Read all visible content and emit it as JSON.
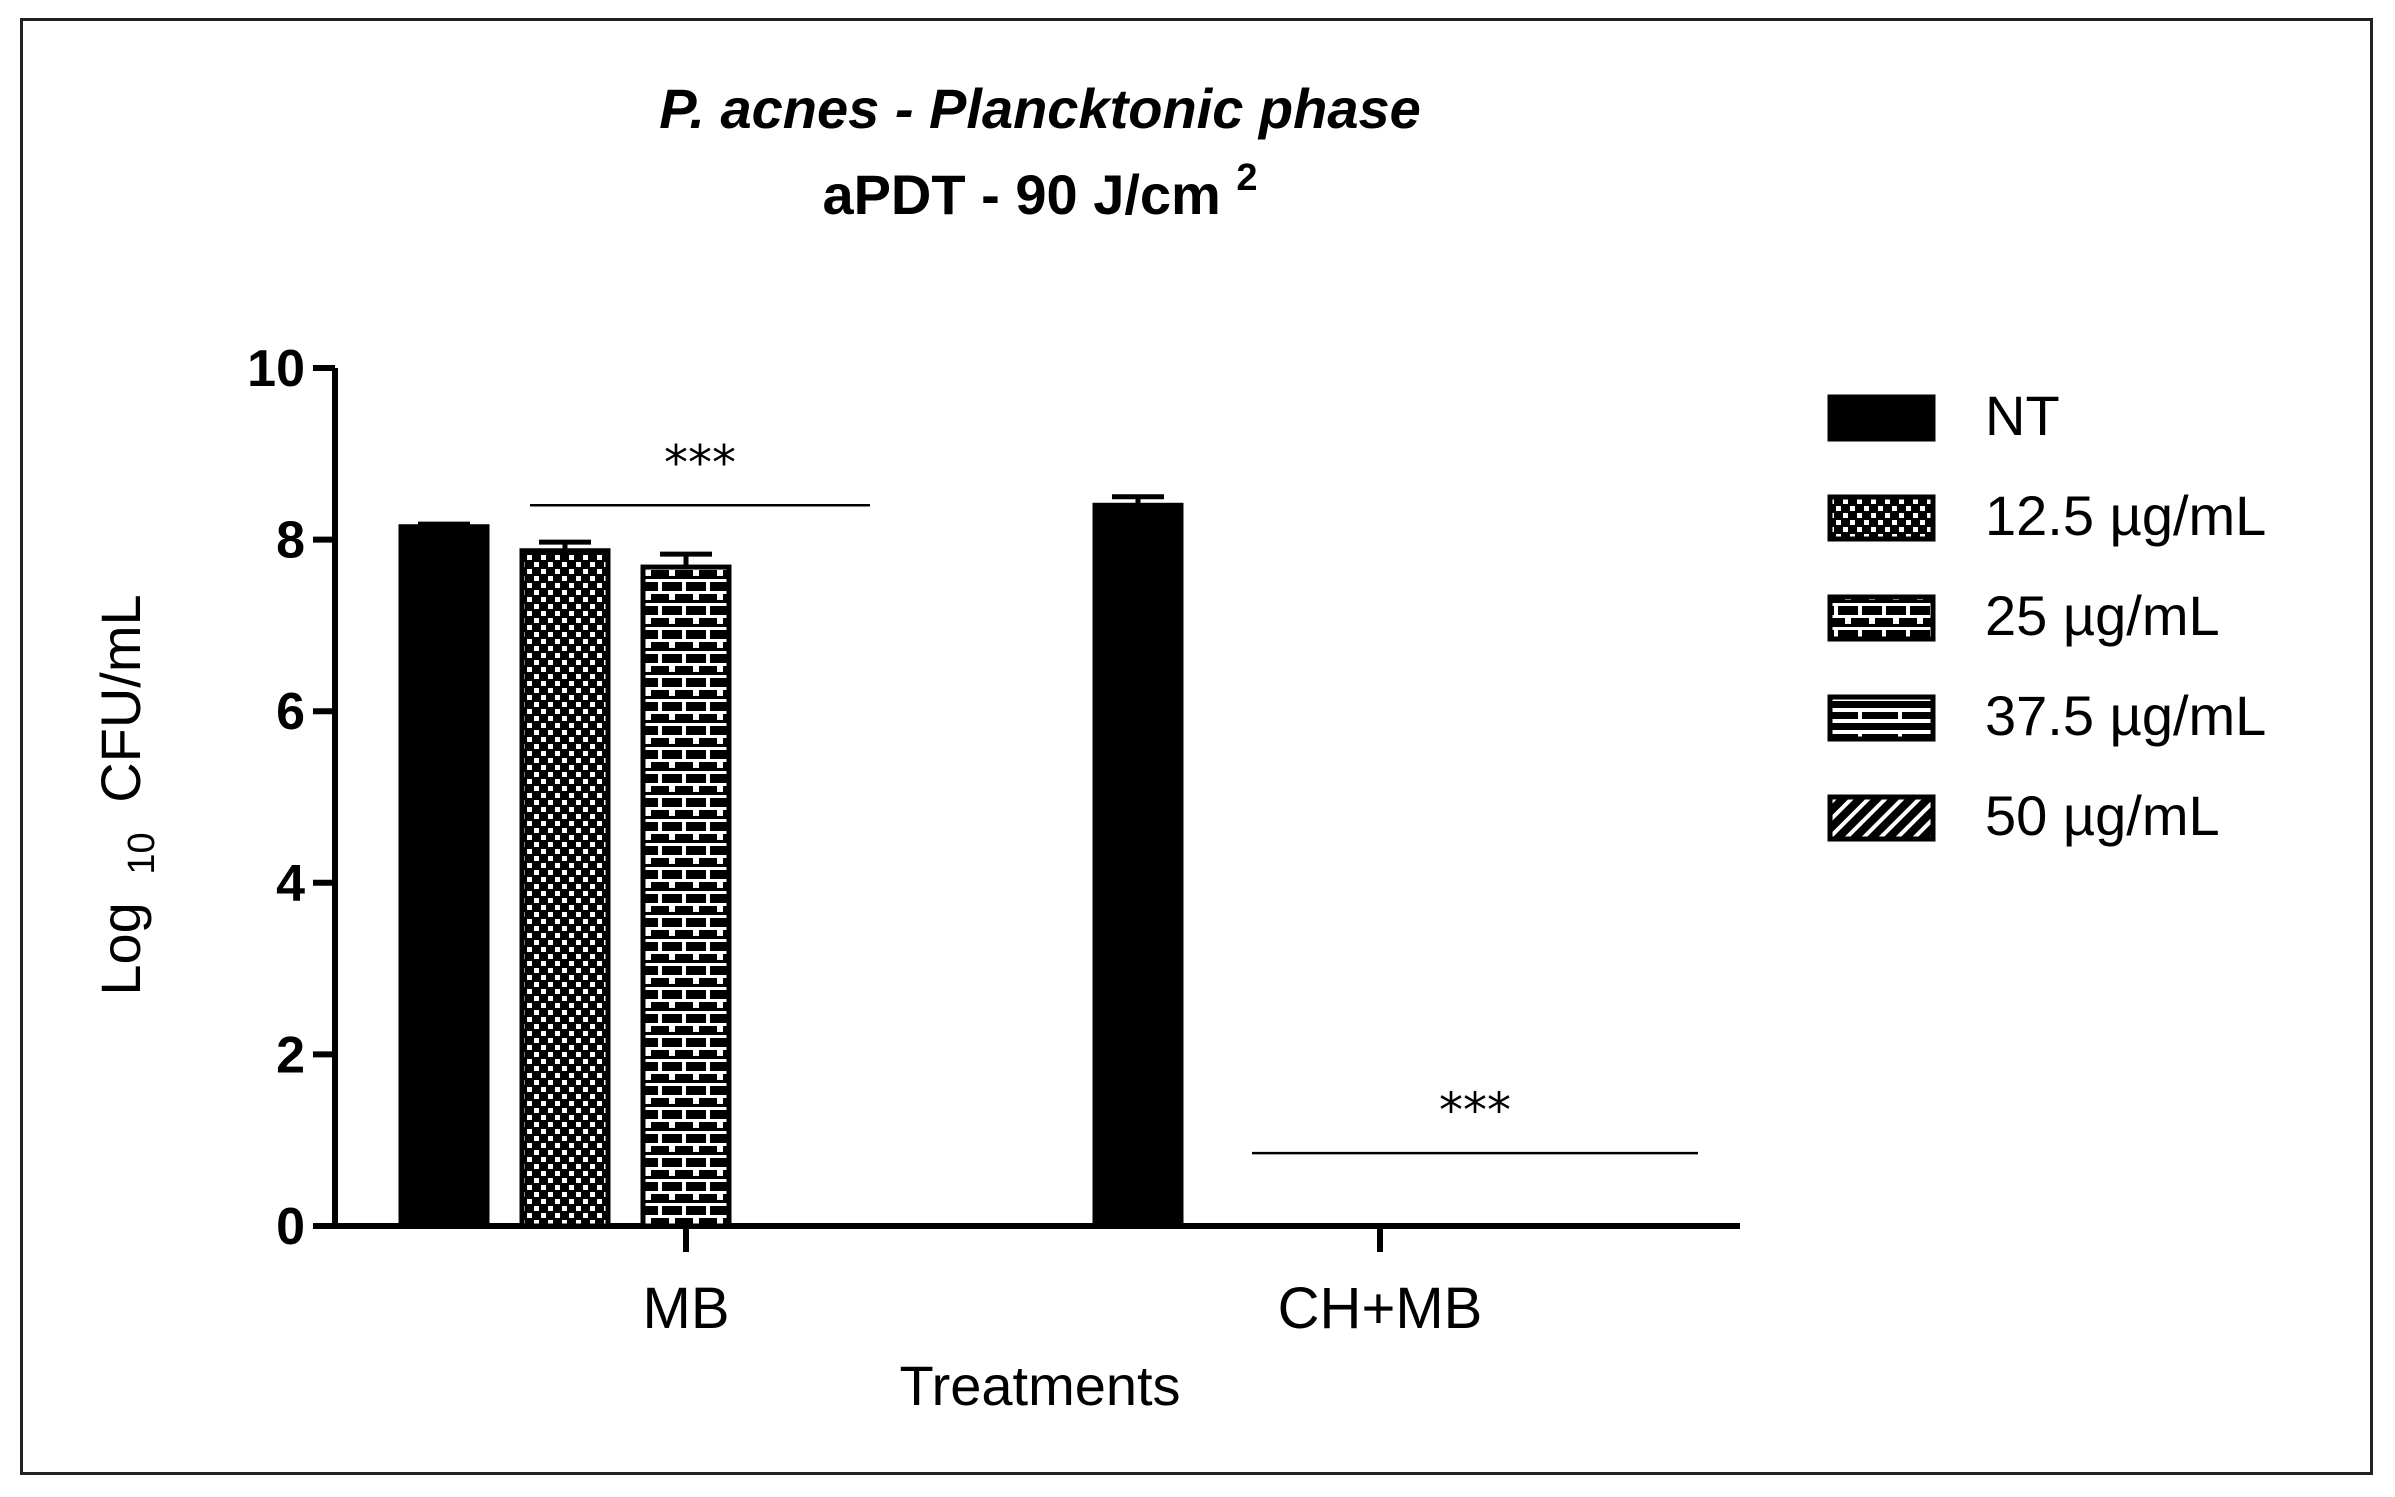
{
  "chart_data": {
    "type": "bar",
    "title": "P. acnes - Plancktonic phase",
    "subtitle_main": "aPDT - 90 J/cm",
    "subtitle_sup": "2",
    "xlabel": "Treatments",
    "ylabel_main": "Log",
    "ylabel_sub": "10",
    "ylabel_rest": "CFU/mL",
    "ylim": [
      0,
      10
    ],
    "yticks": [
      "0",
      "2",
      "4",
      "6",
      "8",
      "10"
    ],
    "categories": [
      "MB",
      "CH+MB"
    ],
    "series": [
      {
        "name": "NT",
        "pattern": "solid",
        "values": [
          8.15,
          8.4
        ],
        "errors": [
          0.03,
          0.1
        ]
      },
      {
        "name": "12.5 µg/mL",
        "pattern": "checker",
        "values": [
          7.87,
          0
        ],
        "errors": [
          0.1,
          0
        ]
      },
      {
        "name": "25 µg/mL",
        "pattern": "brick",
        "values": [
          7.68,
          0
        ],
        "errors": [
          0.15,
          0
        ]
      },
      {
        "name": "37.5 µg/mL",
        "pattern": "brick-wide",
        "values": [
          0,
          0
        ],
        "errors": [
          0,
          0
        ]
      },
      {
        "name": "50 µg/mL",
        "pattern": "hatch",
        "values": [
          0,
          0
        ],
        "errors": [
          0,
          0
        ]
      }
    ],
    "annotations": [
      {
        "text": "***",
        "category": "MB",
        "y": 8.4
      },
      {
        "text": "***",
        "category": "CH+MB",
        "y": 0.85
      }
    ],
    "legend_position": "right",
    "grid": false,
    "colors": {
      "bar": "#000000",
      "pattern_light": "#ffffff",
      "axis": "#000000"
    }
  }
}
